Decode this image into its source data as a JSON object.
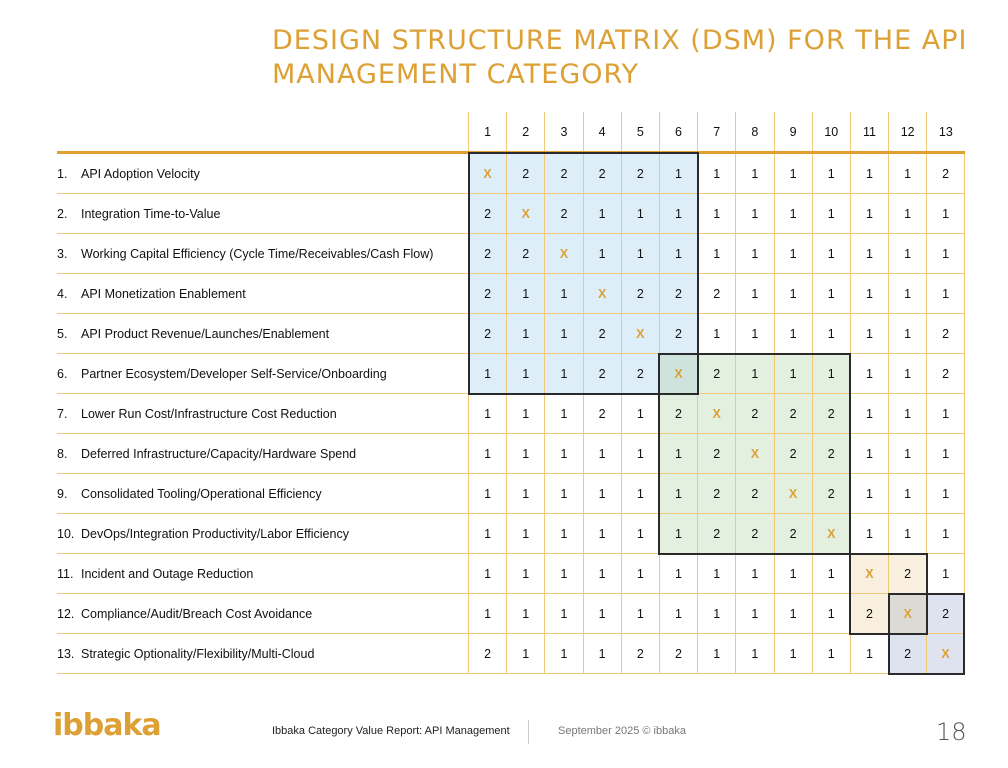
{
  "title": "Design Structure Matrix (DSM) for the API Management Category",
  "columns": [
    "1",
    "2",
    "3",
    "4",
    "5",
    "6",
    "7",
    "8",
    "9",
    "10",
    "11",
    "12",
    "13"
  ],
  "rows": [
    {
      "num": "1.",
      "label": "API Adoption Velocity",
      "values": [
        "X",
        "2",
        "2",
        "2",
        "2",
        "1",
        "1",
        "1",
        "1",
        "1",
        "1",
        "1",
        "2"
      ]
    },
    {
      "num": "2.",
      "label": "Integration Time-to-Value",
      "values": [
        "2",
        "X",
        "2",
        "1",
        "1",
        "1",
        "1",
        "1",
        "1",
        "1",
        "1",
        "1",
        "1"
      ]
    },
    {
      "num": "3.",
      "label": "Working Capital Efficiency (Cycle Time/Receivables/Cash Flow)",
      "values": [
        "2",
        "2",
        "X",
        "1",
        "1",
        "1",
        "1",
        "1",
        "1",
        "1",
        "1",
        "1",
        "1"
      ]
    },
    {
      "num": "4.",
      "label": "API Monetization Enablement",
      "values": [
        "2",
        "1",
        "1",
        "X",
        "2",
        "2",
        "2",
        "1",
        "1",
        "1",
        "1",
        "1",
        "1"
      ]
    },
    {
      "num": "5.",
      "label": "API Product Revenue/Launches/Enablement",
      "values": [
        "2",
        "1",
        "1",
        "2",
        "X",
        "2",
        "1",
        "1",
        "1",
        "1",
        "1",
        "1",
        "2"
      ]
    },
    {
      "num": "6.",
      "label": "Partner Ecosystem/Developer Self-Service/Onboarding",
      "values": [
        "1",
        "1",
        "1",
        "2",
        "2",
        "X",
        "2",
        "1",
        "1",
        "1",
        "1",
        "1",
        "2"
      ]
    },
    {
      "num": "7.",
      "label": "Lower Run Cost/Infrastructure Cost Reduction",
      "values": [
        "1",
        "1",
        "1",
        "2",
        "1",
        "2",
        "X",
        "2",
        "2",
        "2",
        "1",
        "1",
        "1"
      ]
    },
    {
      "num": "8.",
      "label": "Deferred Infrastructure/Capacity/Hardware Spend",
      "values": [
        "1",
        "1",
        "1",
        "1",
        "1",
        "1",
        "2",
        "X",
        "2",
        "2",
        "1",
        "1",
        "1"
      ]
    },
    {
      "num": "9.",
      "label": "Consolidated Tooling/Operational Efficiency",
      "values": [
        "1",
        "1",
        "1",
        "1",
        "1",
        "1",
        "2",
        "2",
        "X",
        "2",
        "1",
        "1",
        "1"
      ]
    },
    {
      "num": "10.",
      "label": "DevOps/Integration Productivity/Labor Efficiency",
      "values": [
        "1",
        "1",
        "1",
        "1",
        "1",
        "1",
        "2",
        "2",
        "2",
        "X",
        "1",
        "1",
        "1"
      ]
    },
    {
      "num": "11.",
      "label": "Incident and Outage Reduction",
      "values": [
        "1",
        "1",
        "1",
        "1",
        "1",
        "1",
        "1",
        "1",
        "1",
        "1",
        "X",
        "2",
        "1"
      ]
    },
    {
      "num": "12.",
      "label": "Compliance/Audit/Breach Cost Avoidance",
      "values": [
        "1",
        "1",
        "1",
        "1",
        "1",
        "1",
        "1",
        "1",
        "1",
        "1",
        "2",
        "X",
        "2"
      ]
    },
    {
      "num": "13.",
      "label": "Strategic Optionality/Flexibility/Multi-Cloud",
      "values": [
        "2",
        "1",
        "1",
        "1",
        "2",
        "2",
        "1",
        "1",
        "1",
        "1",
        "1",
        "2",
        "X"
      ]
    }
  ],
  "clusters": [
    {
      "from": 1,
      "to": 6,
      "color": "#ddeef8"
    },
    {
      "from": 6,
      "to": 10,
      "color": "#e3f0e0"
    },
    {
      "from": 11,
      "to": 12,
      "color": "#f8efdf"
    },
    {
      "from": 12,
      "to": 13,
      "color": "#dfe3ef"
    }
  ],
  "overlap_colors": {
    "6": "#cde3dc",
    "12": "#dcdad5"
  },
  "colors": {
    "accent": "#dca035",
    "grid": "#f0c878"
  },
  "footer": {
    "logo": "ibbaka",
    "report": "Ibbaka Category Value Report: API Management",
    "date": "September 2025 © ibbaka",
    "page": "18"
  }
}
